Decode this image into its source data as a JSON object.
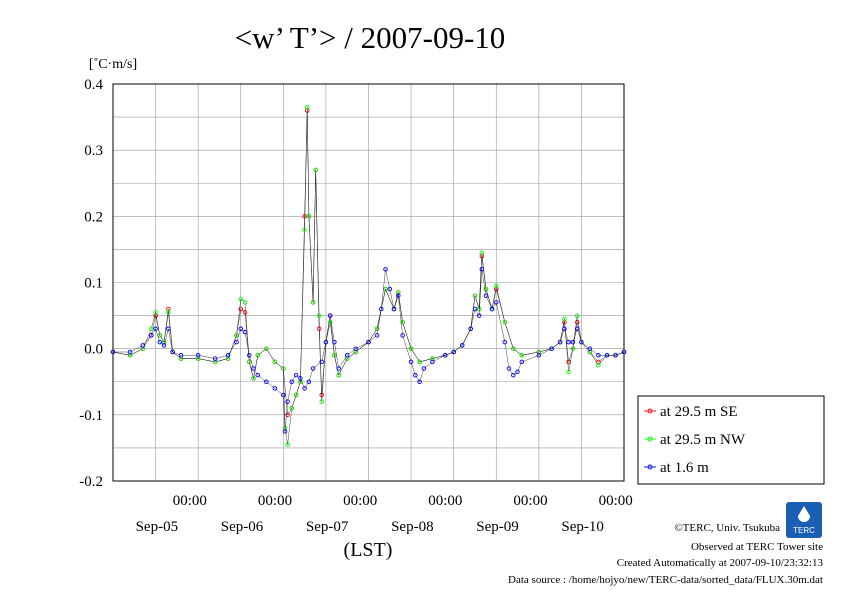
{
  "chart_data": {
    "type": "line",
    "title": "<w’ T’> / 2007-09-10",
    "ylabel": "[˚C·m/s]",
    "xlabel": "(LST)",
    "ylim": [
      -0.2,
      0.4
    ],
    "xlim_days": [
      4.0,
      10.0
    ],
    "yticks": [
      "0.4",
      "0.3",
      "0.2",
      "0.1",
      "0.0",
      "-0.1",
      "-0.2"
    ],
    "xticks": [
      {
        "time": "00:00",
        "date": "Sep-05"
      },
      {
        "time": "00:00",
        "date": "Sep-06"
      },
      {
        "time": "00:00",
        "date": "Sep-07"
      },
      {
        "time": "00:00",
        "date": "Sep-08"
      },
      {
        "time": "00:00",
        "date": "Sep-09"
      },
      {
        "time": "00:00",
        "date": "Sep-10"
      }
    ],
    "grid": true,
    "legend_position": "right",
    "series": [
      {
        "name": "at 29.5 m SE",
        "color": "#ff0000",
        "points": [
          [
            4.0,
            -0.005
          ],
          [
            4.2,
            -0.01
          ],
          [
            4.35,
            0.0
          ],
          [
            4.45,
            0.02
          ],
          [
            4.5,
            0.05
          ],
          [
            4.55,
            0.02
          ],
          [
            4.6,
            0.01
          ],
          [
            4.65,
            0.06
          ],
          [
            4.7,
            -0.005
          ],
          [
            4.8,
            -0.015
          ],
          [
            5.0,
            -0.015
          ],
          [
            5.2,
            -0.02
          ],
          [
            5.35,
            -0.015
          ],
          [
            5.45,
            0.02
          ],
          [
            5.5,
            0.06
          ],
          [
            5.55,
            0.055
          ],
          [
            5.6,
            -0.02
          ],
          [
            5.65,
            -0.045
          ],
          [
            5.7,
            -0.01
          ],
          [
            5.8,
            0.0
          ],
          [
            5.9,
            -0.02
          ],
          [
            6.0,
            -0.03
          ],
          [
            6.05,
            -0.1
          ],
          [
            6.1,
            -0.09
          ],
          [
            6.15,
            -0.07
          ],
          [
            6.2,
            -0.05
          ],
          [
            6.25,
            0.2
          ],
          [
            6.28,
            0.36
          ],
          [
            6.3,
            0.2
          ],
          [
            6.35,
            0.07
          ],
          [
            6.38,
            0.27
          ],
          [
            6.42,
            0.03
          ],
          [
            6.45,
            -0.07
          ],
          [
            6.5,
            0.01
          ],
          [
            6.55,
            0.05
          ],
          [
            6.6,
            -0.01
          ],
          [
            6.65,
            -0.04
          ],
          [
            6.75,
            -0.015
          ],
          [
            6.85,
            -0.005
          ],
          [
            7.0,
            0.01
          ],
          [
            7.1,
            0.03
          ],
          [
            7.2,
            0.09
          ],
          [
            7.3,
            0.06
          ],
          [
            7.35,
            0.085
          ],
          [
            7.4,
            0.04
          ],
          [
            7.5,
            0.0
          ],
          [
            7.6,
            -0.02
          ],
          [
            7.75,
            -0.015
          ],
          [
            7.9,
            -0.01
          ],
          [
            8.0,
            -0.005
          ],
          [
            8.1,
            0.005
          ],
          [
            8.2,
            0.03
          ],
          [
            8.25,
            0.08
          ],
          [
            8.3,
            0.06
          ],
          [
            8.33,
            0.14
          ],
          [
            8.38,
            0.09
          ],
          [
            8.45,
            0.06
          ],
          [
            8.5,
            0.09
          ],
          [
            8.6,
            0.04
          ],
          [
            8.7,
            0.0
          ],
          [
            8.8,
            -0.01
          ],
          [
            9.0,
            -0.005
          ],
          [
            9.15,
            0.0
          ],
          [
            9.25,
            0.01
          ],
          [
            9.3,
            0.04
          ],
          [
            9.35,
            -0.02
          ],
          [
            9.4,
            0.0
          ],
          [
            9.45,
            0.04
          ],
          [
            9.5,
            0.01
          ],
          [
            9.6,
            -0.005
          ],
          [
            9.7,
            -0.02
          ],
          [
            9.8,
            -0.01
          ],
          [
            9.9,
            -0.01
          ],
          [
            10.0,
            -0.005
          ]
        ]
      },
      {
        "name": "at 29.5 m NW",
        "color": "#00ff00",
        "points": [
          [
            4.0,
            -0.005
          ],
          [
            4.2,
            -0.01
          ],
          [
            4.35,
            0.0
          ],
          [
            4.45,
            0.03
          ],
          [
            4.5,
            0.055
          ],
          [
            4.55,
            0.02
          ],
          [
            4.6,
            0.01
          ],
          [
            4.65,
            0.055
          ],
          [
            4.7,
            -0.005
          ],
          [
            4.8,
            -0.015
          ],
          [
            5.0,
            -0.015
          ],
          [
            5.2,
            -0.02
          ],
          [
            5.35,
            -0.015
          ],
          [
            5.45,
            0.02
          ],
          [
            5.5,
            0.075
          ],
          [
            5.55,
            0.07
          ],
          [
            5.6,
            -0.02
          ],
          [
            5.65,
            -0.045
          ],
          [
            5.7,
            -0.01
          ],
          [
            5.8,
            0.0
          ],
          [
            5.9,
            -0.02
          ],
          [
            6.0,
            -0.03
          ],
          [
            6.02,
            -0.12
          ],
          [
            6.05,
            -0.145
          ],
          [
            6.1,
            -0.09
          ],
          [
            6.15,
            -0.07
          ],
          [
            6.2,
            -0.05
          ],
          [
            6.25,
            0.18
          ],
          [
            6.28,
            0.365
          ],
          [
            6.3,
            0.2
          ],
          [
            6.35,
            0.07
          ],
          [
            6.38,
            0.27
          ],
          [
            6.42,
            0.05
          ],
          [
            6.45,
            -0.08
          ],
          [
            6.5,
            0.01
          ],
          [
            6.55,
            0.04
          ],
          [
            6.6,
            -0.01
          ],
          [
            6.65,
            -0.04
          ],
          [
            6.75,
            -0.015
          ],
          [
            6.85,
            -0.005
          ],
          [
            7.0,
            0.01
          ],
          [
            7.1,
            0.03
          ],
          [
            7.2,
            0.09
          ],
          [
            7.3,
            0.06
          ],
          [
            7.35,
            0.085
          ],
          [
            7.4,
            0.04
          ],
          [
            7.5,
            0.0
          ],
          [
            7.6,
            -0.02
          ],
          [
            7.75,
            -0.015
          ],
          [
            7.9,
            -0.01
          ],
          [
            8.0,
            -0.005
          ],
          [
            8.1,
            0.005
          ],
          [
            8.2,
            0.03
          ],
          [
            8.25,
            0.08
          ],
          [
            8.3,
            0.06
          ],
          [
            8.33,
            0.145
          ],
          [
            8.38,
            0.09
          ],
          [
            8.45,
            0.06
          ],
          [
            8.5,
            0.095
          ],
          [
            8.6,
            0.04
          ],
          [
            8.7,
            0.0
          ],
          [
            8.8,
            -0.01
          ],
          [
            9.0,
            -0.005
          ],
          [
            9.15,
            0.0
          ],
          [
            9.25,
            0.01
          ],
          [
            9.3,
            0.045
          ],
          [
            9.35,
            -0.035
          ],
          [
            9.4,
            0.0
          ],
          [
            9.45,
            0.05
          ],
          [
            9.5,
            0.01
          ],
          [
            9.6,
            -0.005
          ],
          [
            9.7,
            -0.025
          ],
          [
            9.8,
            -0.01
          ],
          [
            9.9,
            -0.01
          ],
          [
            10.0,
            -0.005
          ]
        ]
      },
      {
        "name": "at 1.6 m",
        "color": "#0000ff",
        "points": [
          [
            4.0,
            -0.005
          ],
          [
            4.2,
            -0.005
          ],
          [
            4.35,
            0.005
          ],
          [
            4.45,
            0.02
          ],
          [
            4.5,
            0.03
          ],
          [
            4.55,
            0.01
          ],
          [
            4.6,
            0.005
          ],
          [
            4.65,
            0.03
          ],
          [
            4.7,
            -0.005
          ],
          [
            4.8,
            -0.01
          ],
          [
            5.0,
            -0.01
          ],
          [
            5.2,
            -0.015
          ],
          [
            5.35,
            -0.01
          ],
          [
            5.45,
            0.01
          ],
          [
            5.5,
            0.03
          ],
          [
            5.55,
            0.025
          ],
          [
            5.6,
            -0.01
          ],
          [
            5.65,
            -0.03
          ],
          [
            5.7,
            -0.04
          ],
          [
            5.8,
            -0.05
          ],
          [
            5.9,
            -0.06
          ],
          [
            6.0,
            -0.07
          ],
          [
            6.02,
            -0.125
          ],
          [
            6.05,
            -0.08
          ],
          [
            6.1,
            -0.05
          ],
          [
            6.15,
            -0.04
          ],
          [
            6.2,
            -0.045
          ],
          [
            6.25,
            -0.06
          ],
          [
            6.3,
            -0.05
          ],
          [
            6.35,
            -0.03
          ],
          [
            6.45,
            -0.02
          ],
          [
            6.5,
            0.01
          ],
          [
            6.55,
            0.05
          ],
          [
            6.6,
            0.01
          ],
          [
            6.65,
            -0.03
          ],
          [
            6.75,
            -0.01
          ],
          [
            6.85,
            0.0
          ],
          [
            7.0,
            0.01
          ],
          [
            7.1,
            0.02
          ],
          [
            7.15,
            0.06
          ],
          [
            7.2,
            0.12
          ],
          [
            7.25,
            0.09
          ],
          [
            7.3,
            0.06
          ],
          [
            7.35,
            0.08
          ],
          [
            7.4,
            0.02
          ],
          [
            7.5,
            -0.02
          ],
          [
            7.55,
            -0.04
          ],
          [
            7.6,
            -0.05
          ],
          [
            7.65,
            -0.03
          ],
          [
            7.75,
            -0.02
          ],
          [
            7.9,
            -0.01
          ],
          [
            8.0,
            -0.005
          ],
          [
            8.1,
            0.005
          ],
          [
            8.2,
            0.03
          ],
          [
            8.25,
            0.06
          ],
          [
            8.3,
            0.05
          ],
          [
            8.33,
            0.12
          ],
          [
            8.38,
            0.08
          ],
          [
            8.45,
            0.06
          ],
          [
            8.5,
            0.07
          ],
          [
            8.6,
            0.01
          ],
          [
            8.65,
            -0.03
          ],
          [
            8.7,
            -0.04
          ],
          [
            8.75,
            -0.035
          ],
          [
            8.8,
            -0.02
          ],
          [
            9.0,
            -0.01
          ],
          [
            9.15,
            0.0
          ],
          [
            9.25,
            0.01
          ],
          [
            9.3,
            0.03
          ],
          [
            9.35,
            0.01
          ],
          [
            9.4,
            0.01
          ],
          [
            9.45,
            0.03
          ],
          [
            9.5,
            0.01
          ],
          [
            9.6,
            0.0
          ],
          [
            9.7,
            -0.01
          ],
          [
            9.8,
            -0.01
          ],
          [
            9.9,
            -0.01
          ],
          [
            10.0,
            -0.005
          ]
        ]
      }
    ]
  },
  "credits": {
    "copyright": "©TERC, Univ. Tsukuba",
    "site": "Observed at TERC Tower site",
    "created": "Created Automatically at 2007-09-10/23:32:13",
    "source": "Data source : /home/hojyo/new/TERC-data/sorted_data/FLUX.30m.dat",
    "logo_text": "TERC"
  }
}
